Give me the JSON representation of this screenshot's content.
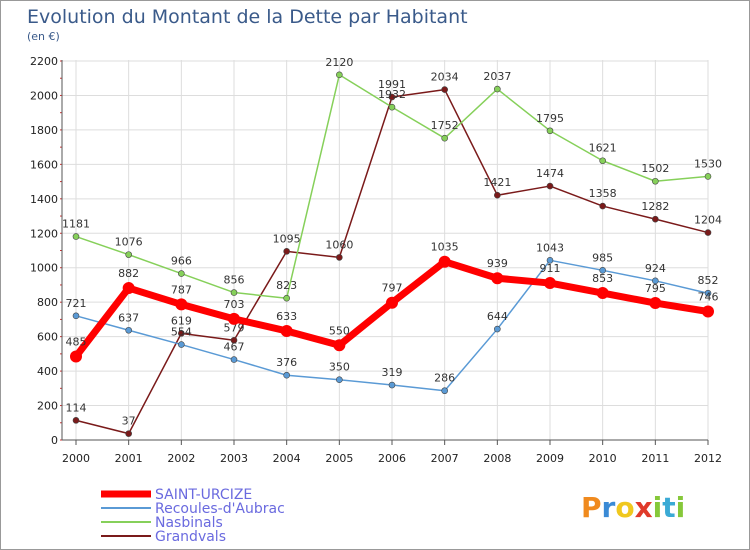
{
  "chart_data": {
    "type": "line",
    "title": "Evolution du Montant de la Dette par Habitant",
    "subtitle": "(en €)",
    "xlabel": "",
    "ylabel": "",
    "categories": [
      "2000",
      "2001",
      "2002",
      "2003",
      "2004",
      "2005",
      "2006",
      "2007",
      "2008",
      "2009",
      "2010",
      "2011",
      "2012"
    ],
    "ylim": [
      0,
      2200
    ],
    "yticks": [
      0,
      200,
      400,
      600,
      800,
      1000,
      1200,
      1400,
      1600,
      1800,
      2000,
      2200
    ],
    "grid": true,
    "legend_position": "bottom-left",
    "series": [
      {
        "name": "Grandvals",
        "color": "#7a1a1a",
        "values": [
          114,
          37,
          619,
          579,
          1095,
          1060,
          1991,
          2034,
          1421,
          1474,
          1358,
          1282,
          1204
        ]
      },
      {
        "name": "Nasbinals",
        "color": "#86d05a",
        "values": [
          1181,
          1076,
          966,
          856,
          823,
          2120,
          1932,
          1752,
          2037,
          1795,
          1621,
          1502,
          1530
        ]
      },
      {
        "name": "Recoules-d'Aubrac",
        "color": "#5a9ad5",
        "values": [
          721,
          637,
          554,
          467,
          376,
          350,
          319,
          286,
          644,
          1043,
          985,
          924,
          852
        ]
      },
      {
        "name": "SAINT-URCIZE",
        "color": "#ff0000",
        "values": [
          485,
          882,
          787,
          703,
          633,
          550,
          797,
          1035,
          939,
          911,
          853,
          795,
          746
        ]
      }
    ],
    "legend_order": [
      "SAINT-URCIZE",
      "Recoules-d'Aubrac",
      "Nasbinals",
      "Grandvals"
    ]
  },
  "logo": {
    "text": "Proxiti",
    "letters": [
      "P",
      "r",
      "o",
      "x",
      "i",
      "t",
      "i"
    ],
    "colors": [
      "#f08a1e",
      "#3a8ad5",
      "#f0c81e",
      "#e03a2a",
      "#86c83a",
      "#3aaad5",
      "#86c83a"
    ]
  },
  "colors": {
    "legend_text": "#6a6adf",
    "grid": "#dddddd",
    "axis": "#555555"
  }
}
